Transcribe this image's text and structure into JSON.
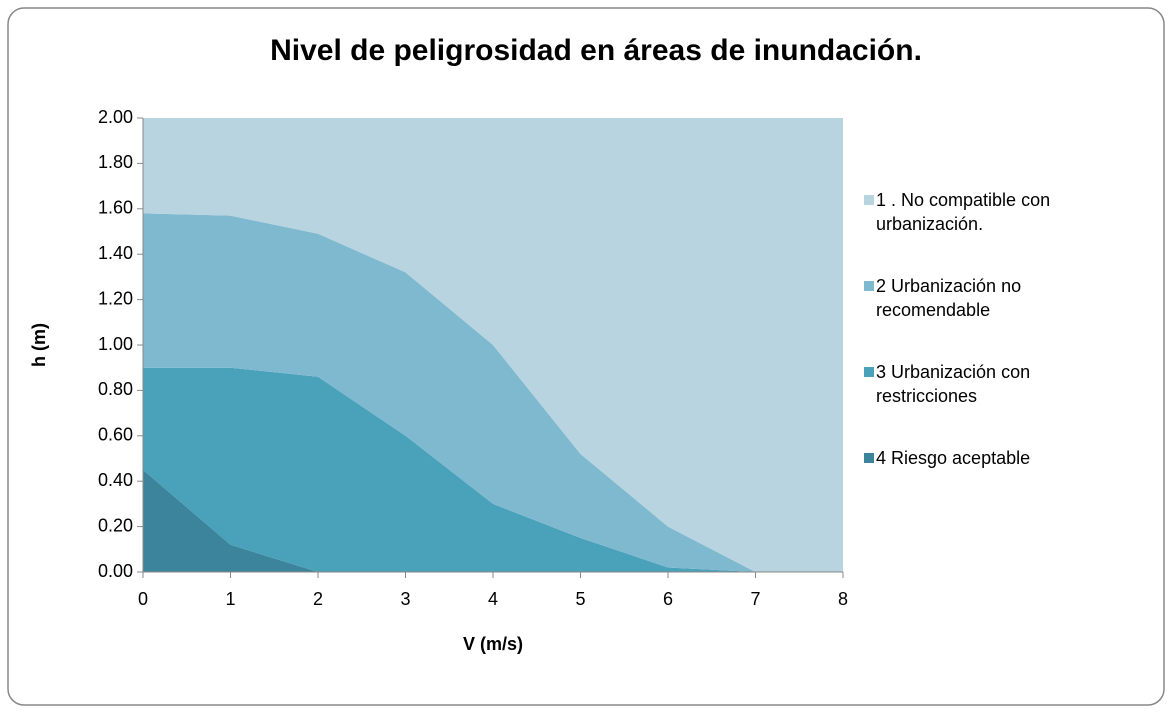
{
  "chart_data": {
    "type": "stacked_area",
    "title": "Nivel de peligrosidad en áreas de inundación.",
    "x_label": "V (m/s)",
    "y_label": "h (m)",
    "x": [
      0,
      1,
      2,
      3,
      4,
      5,
      6,
      7,
      8
    ],
    "series": [
      {
        "name": "1 . No compatible con urbanización.",
        "color": "#b7d4e0",
        "values": [
          0.42,
          0.43,
          0.51,
          0.68,
          1.0,
          1.48,
          1.8,
          2.0,
          2.0
        ]
      },
      {
        "name": "2 Urbanización no recomendable",
        "color": "#7fb9cf",
        "values": [
          0.68,
          0.67,
          0.63,
          0.72,
          0.7,
          0.37,
          0.18,
          0,
          0
        ]
      },
      {
        "name": "3 Urbanización con restricciones",
        "color": "#4aa1ba",
        "values": [
          0.45,
          0.78,
          0.86,
          0.6,
          0.3,
          0.15,
          0.02,
          0,
          0
        ]
      },
      {
        "name": "4 Riesgo aceptable",
        "color": "#3b849b",
        "values": [
          0.45,
          0.12,
          0,
          0,
          0,
          0,
          0,
          0,
          0
        ]
      }
    ],
    "xlim": [
      0,
      8
    ],
    "xticks": [
      0,
      1,
      2,
      3,
      4,
      5,
      6,
      7,
      8
    ],
    "ylim": [
      0,
      2
    ],
    "yticks": [
      {
        "value": 0,
        "label": "0.00"
      },
      {
        "value": 0.2,
        "label": "0.20"
      },
      {
        "value": 0.4,
        "label": "0.40"
      },
      {
        "value": 0.6,
        "label": "0.60"
      },
      {
        "value": 0.8,
        "label": "0.80"
      },
      {
        "value": 1,
        "label": "1.00"
      },
      {
        "value": 1.2,
        "label": "1.20"
      },
      {
        "value": 1.4,
        "label": "1.40"
      },
      {
        "value": 1.6,
        "label": "1.60"
      },
      {
        "value": 1.8,
        "label": "1.80"
      },
      {
        "value": 2,
        "label": "2.00"
      }
    ],
    "legend": "right"
  }
}
